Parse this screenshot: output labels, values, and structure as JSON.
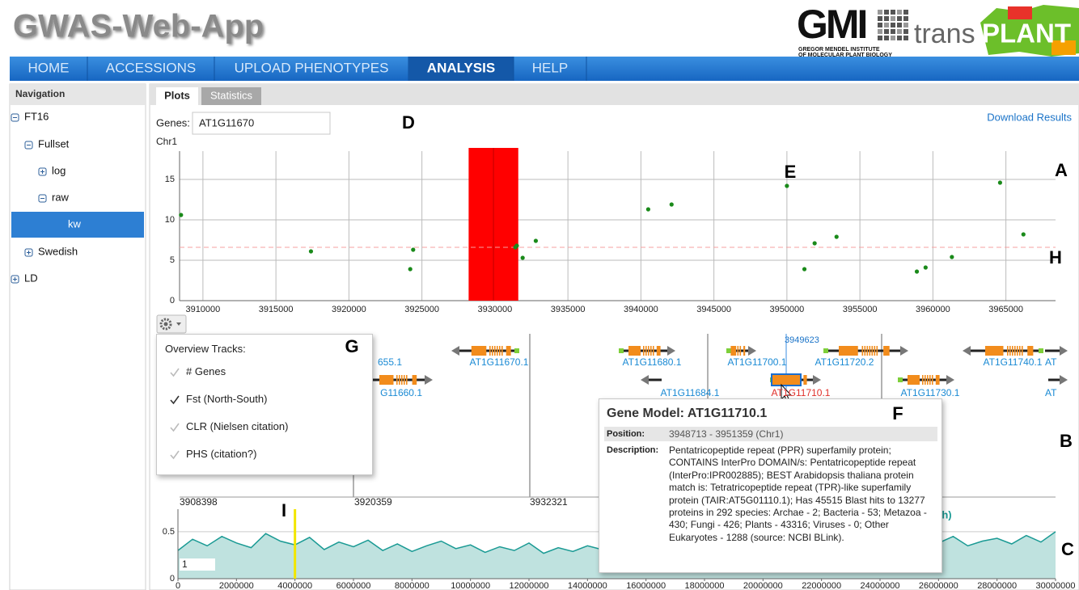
{
  "header": {
    "title": "GWAS-Web-App",
    "logo_gmi": "GMI",
    "logo_line1": "GREGOR MENDEL INSTITUTE",
    "logo_line2": "OF MOLECULAR PLANT BIOLOGY",
    "logo_trans": "trans",
    "logo_plant": "PLANT"
  },
  "nav": {
    "items": [
      "HOME",
      "ACCESSIONS",
      "UPLOAD PHENOTYPES",
      "ANALYSIS",
      "HELP"
    ],
    "active": 3
  },
  "sidebar": {
    "title": "Navigation",
    "items": [
      {
        "label": "FT16",
        "level": 0,
        "state": "open"
      },
      {
        "label": "Fullset",
        "level": 1,
        "state": "open"
      },
      {
        "label": "log",
        "level": 2,
        "state": "closed"
      },
      {
        "label": "raw",
        "level": 2,
        "state": "open"
      },
      {
        "label": "kw",
        "level": 3,
        "state": "leaf",
        "selected": true
      },
      {
        "label": "Swedish",
        "level": 1,
        "state": "closed"
      },
      {
        "label": "LD",
        "level": 0,
        "state": "closed"
      }
    ]
  },
  "tabs": {
    "items": [
      "Plots",
      "Statistics"
    ],
    "active": 0
  },
  "genes_label": "Genes:",
  "genes_value": "AT1G11670",
  "download": "Download Results",
  "chromosome": "Chr1",
  "annotations": [
    "A",
    "B",
    "C",
    "D",
    "E",
    "F",
    "G",
    "H",
    "I"
  ],
  "plot_a": {
    "type": "scatter",
    "xlim": [
      3908400,
      3968400
    ],
    "ylim": [
      0,
      18.5
    ],
    "xticks": [
      3910000,
      3915000,
      3920000,
      3925000,
      3930000,
      3935000,
      3940000,
      3945000,
      3950000,
      3955000,
      3960000,
      3965000
    ],
    "yticks": [
      0,
      5,
      10,
      15
    ],
    "threshold": 6.6,
    "highlight": [
      3928200,
      3931600
    ],
    "color": "#1a8a1a",
    "highlight_color": "#ff0000",
    "threshold_color": "#f4a0a0",
    "x": [
      3908500,
      3917400,
      3924200,
      3924400,
      3931400,
      3931500,
      3931900,
      3932800,
      3940500,
      3942100,
      3950000,
      3951200,
      3951900,
      3953400,
      3958900,
      3959500,
      3961300,
      3964600,
      3966200
    ],
    "y": [
      10.6,
      6.1,
      3.9,
      6.3,
      6.6,
      6.8,
      5.3,
      7.4,
      11.3,
      11.9,
      14.2,
      3.9,
      7.1,
      7.9,
      3.6,
      4.1,
      5.4,
      14.6,
      8.2
    ]
  },
  "gene_track": {
    "ruler": [
      3908398,
      3920359,
      3932321
    ],
    "cursor": 3949623,
    "genes": [
      "655.1",
      "AT1G11670.1",
      "G11660.1",
      "AT1G11680.1",
      "AT1G11684.1",
      "AT1G11700.1",
      "AT1G11710.1",
      "AT1G11720.2",
      "AT1G11730.1",
      "AT1G11740.1",
      "AT",
      "AT"
    ],
    "selected": 6
  },
  "overview": {
    "title": "Overview Tracks:",
    "items": [
      {
        "label": "# Genes",
        "checked": false
      },
      {
        "label": "Fst (North-South)",
        "checked": true
      },
      {
        "label": "CLR (Nielsen citation)",
        "checked": false
      },
      {
        "label": "PHS (citation?)",
        "checked": false
      }
    ]
  },
  "tooltip": {
    "title": "Gene Model: AT1G11710.1",
    "position_label": "Position:",
    "position": "3948713 - 3951359 (Chr1)",
    "description_label": "Description:",
    "description": "Pentatricopeptide repeat (PPR) superfamily protein; CONTAINS InterPro DOMAIN/s: Pentatricopeptide repeat (InterPro:IPR002885); BEST Arabidopsis thaliana protein match is: Tetratricopeptide repeat (TPR)-like superfamily protein (TAIR:AT5G01110.1); Has 45515 Blast hits to 13277 proteins in 292 species: Archae - 2; Bacteria - 53; Metazoa - 430; Fungi - 426; Plants - 43316; Viruses - 0; Other Eukaryotes - 1288 (source: NCBI BLink)."
  },
  "plot_c": {
    "type": "area",
    "xlim": [
      0,
      30000000
    ],
    "ylim": [
      0,
      0.74
    ],
    "xticks": [
      0,
      2000000,
      4000000,
      6000000,
      8000000,
      10000000,
      12000000,
      14000000,
      16000000,
      18000000,
      20000000,
      22000000,
      24000000,
      26000000,
      28000000,
      30000000
    ],
    "yticks": [
      0,
      0.5
    ],
    "color": "#1a9a94",
    "marker": 4000000,
    "marker_color": "#f2e600",
    "label": "1",
    "legend_fragment": "th)",
    "x": [
      0,
      500000,
      1000000,
      1500000,
      2000000,
      2500000,
      3000000,
      3500000,
      4000000,
      4500000,
      5000000,
      5500000,
      6000000,
      6500000,
      7000000,
      7500000,
      8000000,
      8500000,
      9000000,
      9500000,
      10000000,
      10500000,
      11000000,
      11500000,
      12000000,
      12500000,
      13000000,
      13500000,
      14000000,
      14500000,
      15000000,
      15500000,
      16000000,
      16500000,
      17000000,
      17500000,
      18000000,
      18500000,
      19000000,
      19500000,
      20000000,
      20500000,
      21000000,
      21500000,
      22000000,
      22500000,
      23000000,
      23500000,
      24000000,
      24500000,
      25000000,
      25500000,
      26000000,
      26500000,
      27000000,
      27500000,
      28000000,
      28500000,
      29000000,
      29500000,
      30000000
    ],
    "values": [
      0.3,
      0.42,
      0.35,
      0.45,
      0.38,
      0.33,
      0.48,
      0.4,
      0.36,
      0.44,
      0.31,
      0.39,
      0.34,
      0.41,
      0.3,
      0.37,
      0.29,
      0.35,
      0.4,
      0.32,
      0.36,
      0.28,
      0.34,
      0.3,
      0.38,
      0.27,
      0.33,
      0.29,
      0.35,
      0.31,
      0.28,
      0.36,
      0.3,
      0.26,
      0.34,
      0.29,
      0.32,
      0.27,
      0.35,
      0.3,
      0.33,
      0.38,
      0.31,
      0.4,
      0.34,
      0.37,
      0.42,
      0.33,
      0.39,
      0.44,
      0.36,
      0.41,
      0.38,
      0.45,
      0.35,
      0.4,
      0.43,
      0.37,
      0.46,
      0.39,
      0.5
    ]
  }
}
